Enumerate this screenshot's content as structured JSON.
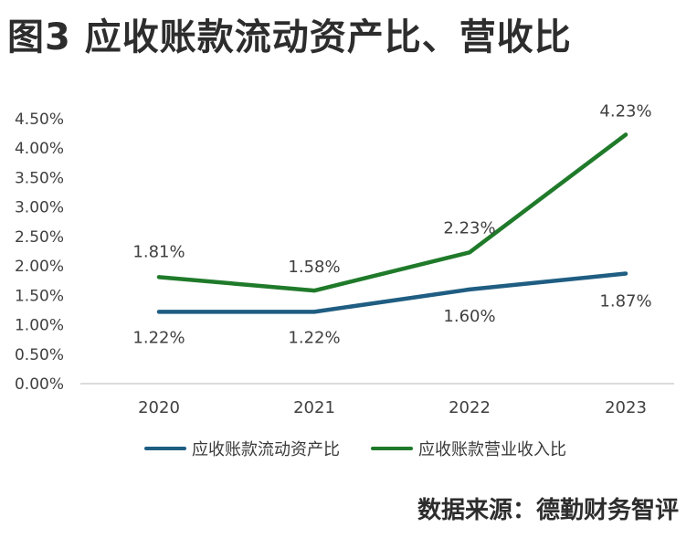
{
  "title": "图3 应收账款流动资产比、营收比",
  "source": "数据来源：德勤财务智评",
  "colors": {
    "series1": "#1f5d82",
    "series2": "#1f7a2a",
    "axis": "#d0d0d0",
    "text": "#404040"
  },
  "chart_data": {
    "type": "line",
    "categories": [
      "2020",
      "2021",
      "2022",
      "2023"
    ],
    "series": [
      {
        "name": "应收账款流动资产比",
        "values": [
          1.22,
          1.22,
          1.6,
          1.87
        ],
        "labels": [
          "1.22%",
          "1.22%",
          "1.60%",
          "1.87%"
        ],
        "color": "#1f5d82"
      },
      {
        "name": "应收账款营业收入比",
        "values": [
          1.81,
          1.58,
          2.23,
          4.23
        ],
        "labels": [
          "1.81%",
          "1.58%",
          "2.23%",
          "4.23%"
        ],
        "color": "#1f7a2a"
      }
    ],
    "y_ticks": [
      "0.00%",
      "0.50%",
      "1.00%",
      "1.50%",
      "2.00%",
      "2.50%",
      "3.00%",
      "3.50%",
      "4.00%",
      "4.50%"
    ],
    "ylim": [
      0,
      4.5
    ],
    "legend_position": "bottom",
    "grid": false
  }
}
